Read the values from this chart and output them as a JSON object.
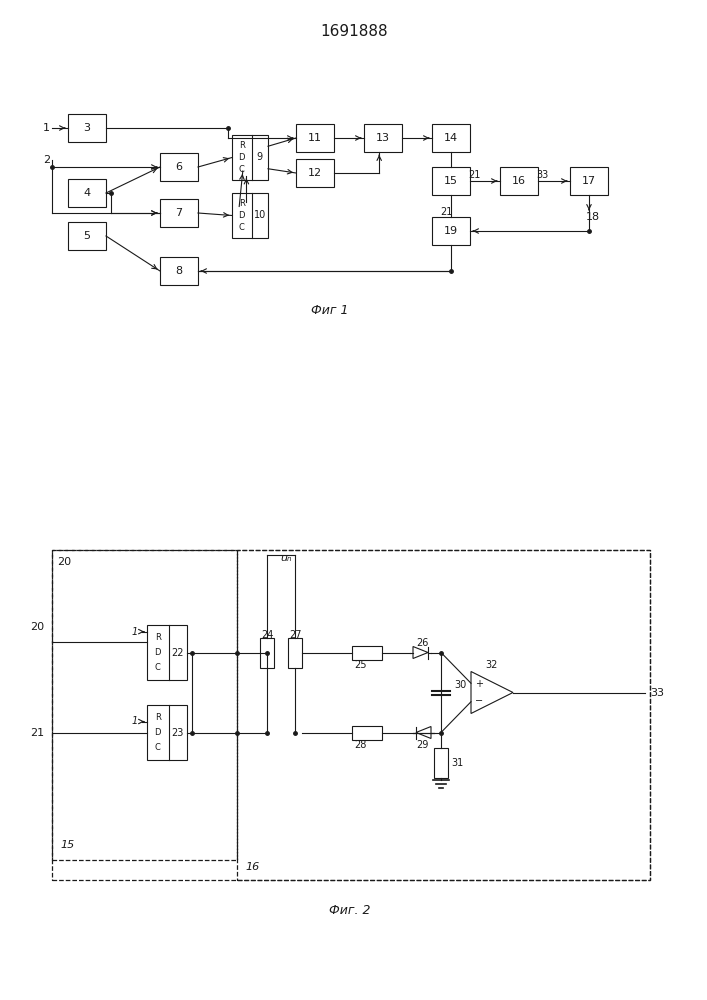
{
  "title": "1691888",
  "fig1_caption": "Фиг 1",
  "fig2_caption": "Фиг. 2",
  "background_color": "#ffffff",
  "line_color": "#1a1a1a",
  "box_color": "#ffffff",
  "box_edge_color": "#1a1a1a"
}
